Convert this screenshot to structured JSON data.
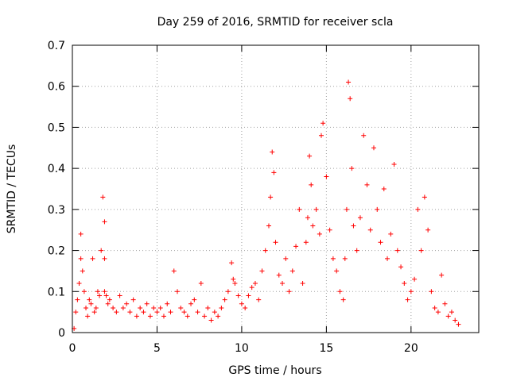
{
  "chart_data": {
    "type": "scatter",
    "title": "Day 259 of 2016, SRMTID for receiver scla",
    "xlabel": "GPS time / hours",
    "ylabel": "SRMTID / TECUs",
    "xlim": [
      0,
      24
    ],
    "ylim": [
      0,
      0.7
    ],
    "xticks": [
      0,
      5,
      10,
      15,
      20
    ],
    "xtick_labels": [
      "0",
      "5",
      "10",
      "15",
      "20"
    ],
    "yticks": [
      0,
      0.1,
      0.2,
      0.3,
      0.4,
      0.5,
      0.6,
      0.7
    ],
    "ytick_labels": [
      "0",
      "0.1",
      "0.2",
      "0.3",
      "0.4",
      "0.5",
      "0.6",
      "0.7"
    ],
    "grid": true,
    "marker": "+",
    "series": [
      {
        "name": "SRMTID",
        "color": "#ff0000",
        "x": [
          0.1,
          0.2,
          0.3,
          0.4,
          0.5,
          0.5,
          0.6,
          0.7,
          0.8,
          0.9,
          1.0,
          1.1,
          1.2,
          1.3,
          1.4,
          1.5,
          1.6,
          1.7,
          1.8,
          1.9,
          1.9,
          1.9,
          2.0,
          2.1,
          2.2,
          2.4,
          2.6,
          2.8,
          3.0,
          3.2,
          3.4,
          3.6,
          3.8,
          4.0,
          4.2,
          4.4,
          4.6,
          4.8,
          5.0,
          5.2,
          5.4,
          5.6,
          5.8,
          6.0,
          6.2,
          6.4,
          6.6,
          6.8,
          7.0,
          7.2,
          7.4,
          7.6,
          7.8,
          8.0,
          8.2,
          8.4,
          8.6,
          8.8,
          9.0,
          9.2,
          9.4,
          9.5,
          9.6,
          9.8,
          10.0,
          10.2,
          10.4,
          10.6,
          10.8,
          11.0,
          11.2,
          11.4,
          11.6,
          11.7,
          11.8,
          11.9,
          12.0,
          12.2,
          12.4,
          12.6,
          12.8,
          13.0,
          13.2,
          13.4,
          13.6,
          13.8,
          13.9,
          14.0,
          14.1,
          14.2,
          14.4,
          14.6,
          14.7,
          14.8,
          15.0,
          15.2,
          15.4,
          15.6,
          15.8,
          16.0,
          16.1,
          16.2,
          16.3,
          16.4,
          16.5,
          16.6,
          16.8,
          17.0,
          17.2,
          17.4,
          17.6,
          17.8,
          18.0,
          18.2,
          18.4,
          18.6,
          18.8,
          19.0,
          19.2,
          19.4,
          19.6,
          19.8,
          20.0,
          20.2,
          20.4,
          20.6,
          20.8,
          21.0,
          21.2,
          21.4,
          21.6,
          21.8,
          22.0,
          22.2,
          22.4,
          22.6,
          22.8
        ],
        "y": [
          0.01,
          0.05,
          0.08,
          0.12,
          0.24,
          0.18,
          0.15,
          0.1,
          0.06,
          0.04,
          0.08,
          0.07,
          0.18,
          0.05,
          0.06,
          0.1,
          0.09,
          0.2,
          0.33,
          0.27,
          0.18,
          0.1,
          0.09,
          0.07,
          0.08,
          0.06,
          0.05,
          0.09,
          0.06,
          0.07,
          0.05,
          0.08,
          0.04,
          0.06,
          0.05,
          0.07,
          0.04,
          0.06,
          0.05,
          0.06,
          0.04,
          0.07,
          0.05,
          0.15,
          0.1,
          0.06,
          0.05,
          0.04,
          0.07,
          0.08,
          0.05,
          0.12,
          0.04,
          0.06,
          0.03,
          0.05,
          0.04,
          0.06,
          0.08,
          0.1,
          0.17,
          0.13,
          0.12,
          0.09,
          0.07,
          0.06,
          0.09,
          0.11,
          0.12,
          0.08,
          0.15,
          0.2,
          0.26,
          0.33,
          0.44,
          0.39,
          0.22,
          0.14,
          0.12,
          0.18,
          0.1,
          0.15,
          0.21,
          0.3,
          0.12,
          0.22,
          0.28,
          0.43,
          0.36,
          0.26,
          0.3,
          0.24,
          0.48,
          0.51,
          0.38,
          0.25,
          0.18,
          0.15,
          0.1,
          0.08,
          0.18,
          0.3,
          0.61,
          0.57,
          0.4,
          0.26,
          0.2,
          0.28,
          0.48,
          0.36,
          0.25,
          0.45,
          0.3,
          0.22,
          0.35,
          0.18,
          0.24,
          0.41,
          0.2,
          0.16,
          0.12,
          0.08,
          0.1,
          0.13,
          0.3,
          0.2,
          0.33,
          0.25,
          0.1,
          0.06,
          0.05,
          0.14,
          0.07,
          0.04,
          0.05,
          0.03,
          0.02
        ]
      }
    ]
  }
}
